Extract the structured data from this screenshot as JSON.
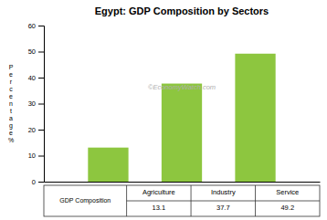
{
  "chart_data": {
    "type": "bar",
    "title": "Egypt: GDP Composition by Sectors",
    "categories": [
      "Agriculture",
      "Industry",
      "Service"
    ],
    "values": [
      13.1,
      37.7,
      49.2
    ],
    "value_labels": [
      "13.1",
      "37.7",
      "49.2"
    ],
    "color": "#8dc63f",
    "ylabel": "P\ne\nr\nc\ne\nn\nt\na\ng\ne\n%",
    "ylim": [
      0,
      60
    ],
    "yticks": [
      0,
      10,
      20,
      30,
      40,
      50,
      60
    ],
    "annotations": [
      "©EconomyWatch.com"
    ],
    "table_row_label": "GDP Composition",
    "grid": false
  }
}
